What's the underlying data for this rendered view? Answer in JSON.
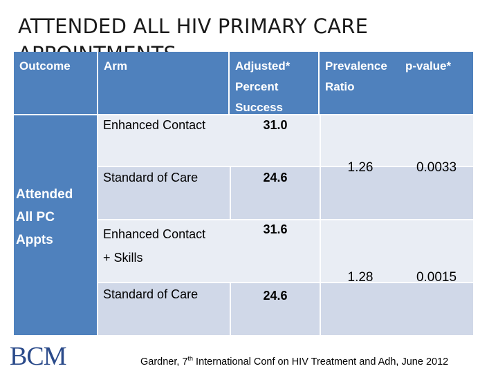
{
  "slide": {
    "title": "ATTENDED ALL HIV PRIMARY CARE APPOINTMENTS"
  },
  "table": {
    "headers": {
      "outcome": "Outcome",
      "arm": "Arm",
      "adjusted_line1": "Adjusted*",
      "adjusted_line2": "Percent",
      "adjusted_line3": "Success",
      "prevalence_line1": "Prevalence",
      "prevalence_line2": "Ratio",
      "pvalue": "p-value*"
    },
    "outcome_label_line1": "Attended",
    "outcome_label_line2": "All PC",
    "outcome_label_line3": "Appts",
    "rows": [
      {
        "arm": "Enhanced Contact",
        "percent": "31.0"
      },
      {
        "arm": "Standard of Care",
        "percent": "24.6"
      },
      {
        "arm_line1": "Enhanced Contact",
        "arm_line2": "+ Skills",
        "percent": "31.6"
      },
      {
        "arm": "Standard of Care",
        "percent": "24.6"
      }
    ],
    "comparisons": [
      {
        "prevalence_ratio": "1.26",
        "p_value": "0.0033"
      },
      {
        "prevalence_ratio": "1.28",
        "p_value": "0.0015"
      }
    ]
  },
  "footer": {
    "logo_text": "BCM",
    "citation_before": "Gardner, 7",
    "citation_sup": "th",
    "citation_after": " International Conf on HIV Treatment and Adh, June 2012"
  },
  "colors": {
    "header_blue": "#4f81bd",
    "row_light": "#e9edf4",
    "row_dark": "#d0d8e8"
  }
}
